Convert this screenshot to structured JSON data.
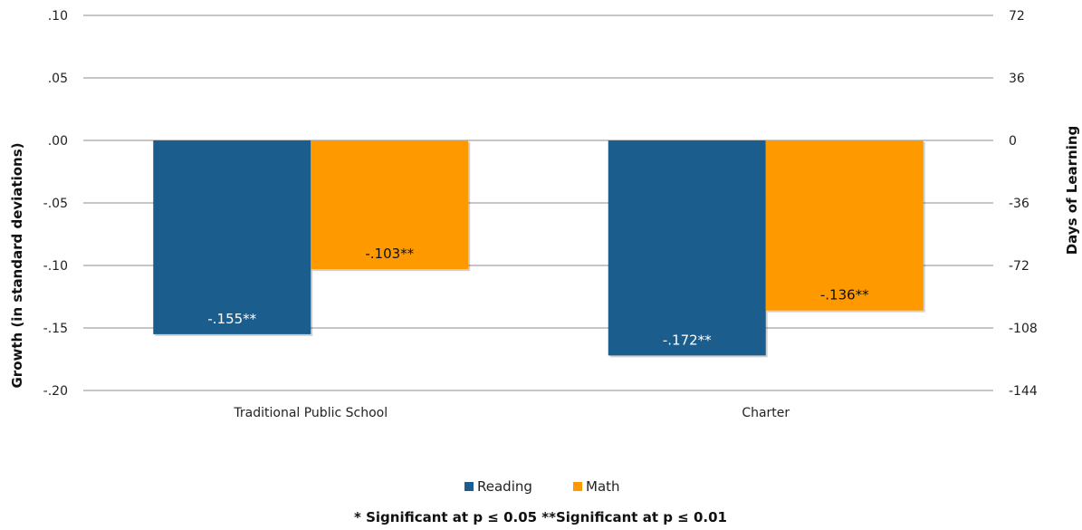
{
  "chart_data": {
    "type": "bar",
    "categories": [
      "Traditional Public School",
      "Charter"
    ],
    "series": [
      {
        "name": "Reading",
        "values": [
          -0.155,
          -0.172
        ],
        "labels": [
          "-.155**",
          "-.172**"
        ],
        "color": "#1B5E8E",
        "label_color": "#ffffff"
      },
      {
        "name": "Math",
        "values": [
          -0.103,
          -0.136
        ],
        "labels": [
          "-.103**",
          "-.136**"
        ],
        "color": "#FF9900",
        "label_color": "#111111"
      }
    ],
    "ylabel": "Growth (in standard deviations)",
    "y2label": "Days of Learning",
    "ylim": [
      -0.2,
      0.1
    ],
    "y_ticks": [
      0.1,
      0.05,
      0.0,
      -0.05,
      -0.1,
      -0.15,
      -0.2
    ],
    "y_tick_labels": [
      ".10",
      ".05",
      ".00",
      "-.05",
      "-.10",
      "-.15",
      "-.20"
    ],
    "y2_tick_labels": [
      "72",
      "36",
      "0",
      "-36",
      "-72",
      "-108",
      "-144"
    ],
    "grid": true,
    "legend_position": "bottom",
    "footnote": "* Significant at p ≤ 0.05  **Significant at p ≤ 0.01"
  }
}
